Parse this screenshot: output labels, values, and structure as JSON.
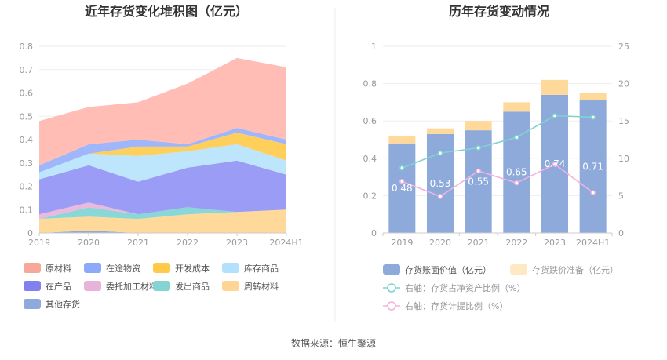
{
  "source_label": "数据来源：恒生聚源",
  "chart_data": [
    {
      "type": "area",
      "stacked": true,
      "title": "近年存货变化堆积图（亿元）",
      "categories": [
        "2019",
        "2020",
        "2021",
        "2022",
        "2023",
        "2024H1"
      ],
      "ylim": [
        0,
        0.8
      ],
      "yticks": [
        "0",
        "0.1",
        "0.2",
        "0.3",
        "0.4",
        "0.5",
        "0.6",
        "0.7",
        "0.8"
      ],
      "legend_position": "bottom",
      "series": [
        {
          "name": "其他存货",
          "color": "#8eaadb",
          "values": [
            0.0,
            0.01,
            0.0,
            0.0,
            0.0,
            0.0
          ]
        },
        {
          "name": "周转材料",
          "color": "#ffd99a",
          "values": [
            0.06,
            0.06,
            0.06,
            0.08,
            0.09,
            0.1
          ]
        },
        {
          "name": "发出商品",
          "color": "#8ad7d7",
          "values": [
            0.0,
            0.04,
            0.02,
            0.03,
            0.0,
            0.0
          ]
        },
        {
          "name": "委托加工材料",
          "color": "#ecb8dc",
          "values": [
            0.02,
            0.02,
            0.0,
            0.0,
            0.0,
            0.0
          ]
        },
        {
          "name": "在产品",
          "color": "#9b9cf5",
          "values": [
            0.15,
            0.16,
            0.14,
            0.17,
            0.22,
            0.15
          ]
        },
        {
          "name": "库存商品",
          "color": "#bde5fb",
          "values": [
            0.03,
            0.05,
            0.11,
            0.07,
            0.07,
            0.06
          ]
        },
        {
          "name": "开发成本",
          "color": "#ffcf5c",
          "values": [
            0.0,
            0.0,
            0.04,
            0.02,
            0.05,
            0.07
          ]
        },
        {
          "name": "在途物资",
          "color": "#9fb6fb",
          "values": [
            0.03,
            0.04,
            0.03,
            0.01,
            0.02,
            0.02
          ]
        },
        {
          "name": "原材料",
          "color": "#ffbdb6",
          "values": [
            0.19,
            0.16,
            0.16,
            0.26,
            0.3,
            0.31
          ]
        }
      ],
      "legend_order": [
        "原材料",
        "在途物资",
        "开发成本",
        "库存商品",
        "在产品",
        "委托加工材料",
        "发出商品",
        "周转材料",
        "其他存货"
      ],
      "legend_colors": {
        "原材料": "#f8a89a",
        "在途物资": "#8da9f9",
        "开发成本": "#ffc94a",
        "库存商品": "#b3e0fb",
        "在产品": "#8080ee",
        "委托加工材料": "#e7b3d9",
        "发出商品": "#85d3d4",
        "周转材料": "#ffd595",
        "其他存货": "#8eaadb"
      }
    },
    {
      "type": "bar",
      "stacked": true,
      "title": "历年存货变动情况",
      "categories": [
        "2019",
        "2020",
        "2021",
        "2022",
        "2023",
        "2024H1"
      ],
      "ylim": [
        0,
        1
      ],
      "yticks": [
        "0",
        "0.2",
        "0.4",
        "0.6",
        "0.8",
        "1"
      ],
      "y2lim": [
        0,
        25
      ],
      "y2ticks": [
        "0",
        "5",
        "10",
        "15",
        "20",
        "25"
      ],
      "series": [
        {
          "name": "存货账面价值（亿元）",
          "color": "#8eaadb",
          "values": [
            0.48,
            0.53,
            0.55,
            0.65,
            0.74,
            0.71
          ],
          "labels": [
            "0.48",
            "0.53",
            "0.55",
            "0.65",
            "0.74",
            "0.71"
          ]
        },
        {
          "name": "存货跌价准备（亿元）",
          "color": "#ffd99a",
          "values": [
            0.04,
            0.03,
            0.05,
            0.05,
            0.08,
            0.04
          ]
        }
      ],
      "lines": [
        {
          "name": "右轴：存货占净资产比例（%）",
          "color": "#7fd3d0",
          "axis": "right",
          "values": [
            8.7,
            10.7,
            11.4,
            12.8,
            15.7,
            15.5
          ]
        },
        {
          "name": "右轴：存货计提比例（%）",
          "color": "#efb3dc",
          "axis": "right",
          "values": [
            6.9,
            4.9,
            8.3,
            6.7,
            9.2,
            5.4
          ]
        }
      ],
      "legend_position": "bottom"
    }
  ]
}
